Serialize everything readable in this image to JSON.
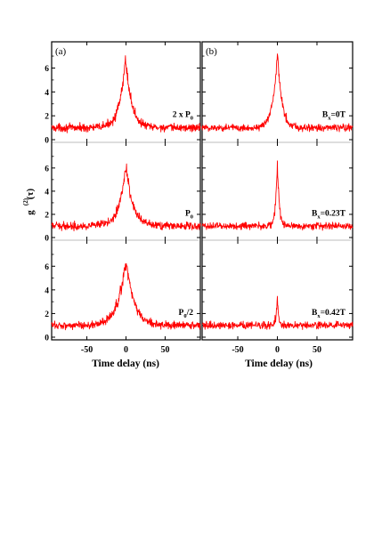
{
  "figure": {
    "ylabel": "g",
    "ylabel_super": "(2)",
    "ylabel_arg": "(τ)",
    "xlabel": "Time delay (ns)",
    "trace_color": "#ff0000"
  },
  "chart_data": [
    {
      "type": "line",
      "column": "left",
      "panel_letter": "(a)",
      "label": "2 x P",
      "label_sub": "0",
      "xlim": [
        -95,
        95
      ],
      "ylim": [
        0,
        7.6
      ],
      "yticks": [
        0,
        2,
        4,
        6
      ],
      "xticks": [
        -50,
        0,
        50
      ],
      "model": {
        "baseline": 1.0,
        "peak": 6.9,
        "center": -0.5,
        "tau": 7.5,
        "dip": 0.0,
        "dip_width": 0,
        "noise": 0.32
      }
    },
    {
      "type": "line",
      "column": "left",
      "label": "P",
      "label_sub": "0",
      "xlim": [
        -95,
        95
      ],
      "ylim": [
        0,
        7.6
      ],
      "yticks": [
        0,
        2,
        4,
        6
      ],
      "xticks": [
        -50,
        0,
        50
      ],
      "model": {
        "baseline": 1.0,
        "peak": 6.7,
        "center": 0.0,
        "tau": 8.0,
        "dip": 0.15,
        "dip_width": 1.5,
        "noise": 0.32
      }
    },
    {
      "type": "line",
      "column": "left",
      "label": "P",
      "label_sub": "0",
      "label_suffix": "/2",
      "xlim": [
        -95,
        95
      ],
      "ylim": [
        0,
        7.6
      ],
      "yticks": [
        0,
        2,
        4,
        6
      ],
      "xticks": [
        -50,
        0,
        50
      ],
      "model": {
        "baseline": 1.0,
        "peak": 7.0,
        "center": 0.0,
        "tau": 9.5,
        "dip": 0.2,
        "dip_width": 1.5,
        "noise": 0.32
      }
    },
    {
      "type": "line",
      "column": "right",
      "panel_letter": "(b)",
      "label": "B",
      "label_sub": "x",
      "label_suffix": "=0T",
      "xlim": [
        -95,
        95
      ],
      "ylim": [
        0,
        7.6
      ],
      "yticks": [
        0,
        2,
        4,
        6
      ],
      "xticks": [
        -50,
        0,
        50
      ],
      "model": {
        "baseline": 1.0,
        "peak": 7.3,
        "center": 0.0,
        "tau": 5.5,
        "dip": 0.0,
        "dip_width": 0,
        "noise": 0.3
      }
    },
    {
      "type": "line",
      "column": "right",
      "label": "B",
      "label_sub": "x",
      "label_suffix": "=0.23T",
      "xlim": [
        -95,
        95
      ],
      "ylim": [
        0,
        7.6
      ],
      "yticks": [
        0,
        2,
        4,
        6
      ],
      "xticks": [
        -50,
        0,
        50
      ],
      "model": {
        "baseline": 1.0,
        "peak": 6.7,
        "center": 0.0,
        "tau": 2.2,
        "dip": 0.0,
        "dip_width": 0,
        "noise": 0.3
      }
    },
    {
      "type": "line",
      "column": "right",
      "label": "B",
      "label_sub": "x",
      "label_suffix": "=0.42T",
      "xlim": [
        -95,
        95
      ],
      "ylim": [
        0,
        7.6
      ],
      "yticks": [
        0,
        2,
        4,
        6
      ],
      "xticks": [
        -50,
        0,
        50
      ],
      "model": {
        "baseline": 1.0,
        "peak": 3.5,
        "center": 0.0,
        "tau": 1.7,
        "dip": 0.0,
        "dip_width": 0,
        "noise": 0.3
      }
    }
  ]
}
